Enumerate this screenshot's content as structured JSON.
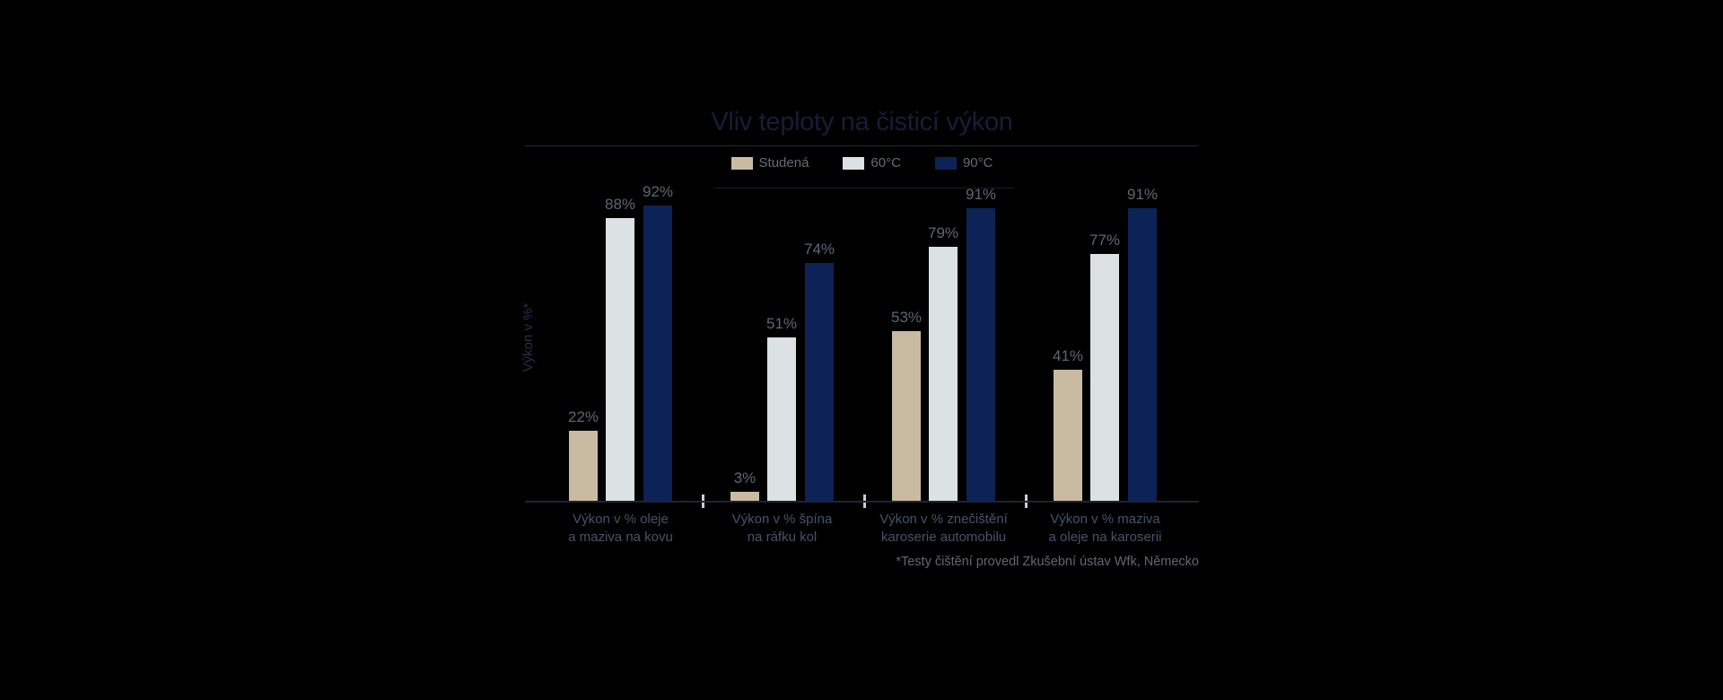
{
  "title": "Vliv teploty na čisticí výkon",
  "y_axis_label": "Výkon v %*",
  "footnote": "*Testy čištění provedl Zkušební ústav Wfk, Německo",
  "chart_data": {
    "type": "bar",
    "categories": [
      [
        "Výkon v % oleje",
        "a maziva na kovu"
      ],
      [
        "Výkon v % špína",
        "na ráfku kol"
      ],
      [
        "Výkon v % znečištění",
        "karoserie automobilu"
      ],
      [
        "Výkon v % maziva",
        "a oleje na karoserii"
      ]
    ],
    "series": [
      {
        "name": "Studená",
        "color": "#c8bba1",
        "values": [
          22,
          3,
          53,
          41
        ]
      },
      {
        "name": "60°C",
        "color": "#dce1e3",
        "values": [
          88,
          51,
          79,
          77
        ]
      },
      {
        "name": "90°C",
        "color": "#0d2256",
        "values": [
          92,
          74,
          91,
          91
        ]
      }
    ],
    "value_suffix": "%",
    "ylabel": "Výkon v %",
    "ylim": [
      0,
      100
    ],
    "grid": false,
    "legend_position": "top"
  },
  "colors": {
    "background": "#000000",
    "title": "#131f38",
    "rule_top": "#1e2940",
    "rule_legend": "#131c2e",
    "axis_line": "#1c2536",
    "tick": "#c7d0d5",
    "value_label": "#5d6775",
    "category_label": "#44546a",
    "legend_text": "#646c78",
    "footnote_text": "#5f6873",
    "y_axis_label": "#23304a"
  }
}
